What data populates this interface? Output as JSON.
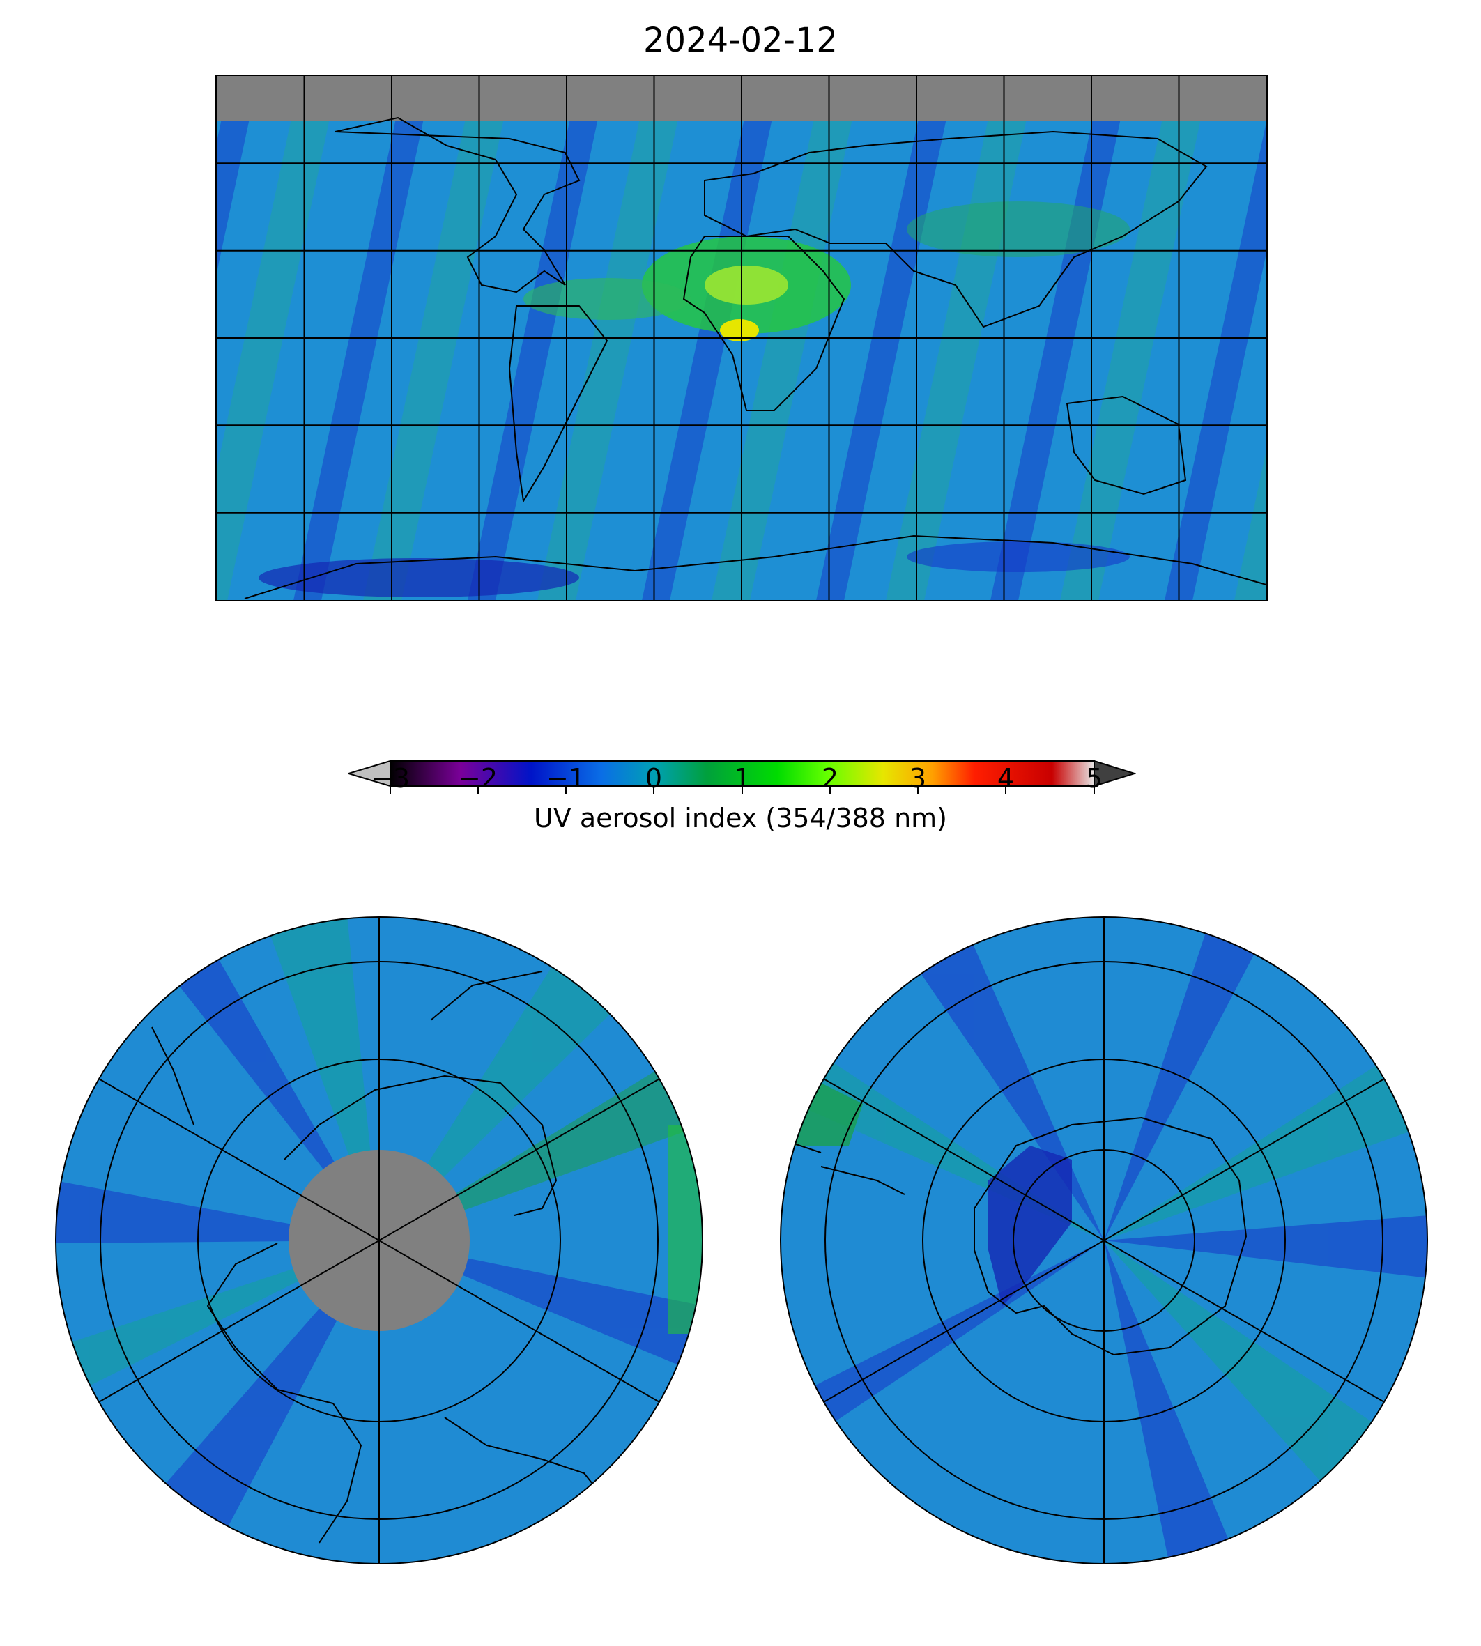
{
  "title": "2024-02-12",
  "colorbar": {
    "label": "UV aerosol index (354/388 nm)",
    "ticks": [
      "−3",
      "−2",
      "−1",
      "0",
      "1",
      "2",
      "3",
      "4",
      "5"
    ],
    "min": -3,
    "max": 5,
    "stops": [
      "#000000",
      "#7a0099",
      "#0014c8",
      "#0a6ee6",
      "#00a0b4",
      "#00a03c",
      "#00dc00",
      "#64ff00",
      "#e6e600",
      "#ffa000",
      "#ff1e00",
      "#c80000",
      "#e6e6e6"
    ],
    "under_color": "#c0c0c0",
    "over_color": "#404040"
  },
  "colors": {
    "missing_data": "#808080",
    "coastline": "#000000",
    "ocean_base": "#1f8fd6"
  },
  "maps": {
    "global": {
      "name": "global-map"
    },
    "north": {
      "name": "north-polar-map"
    },
    "south": {
      "name": "south-polar-map"
    }
  }
}
